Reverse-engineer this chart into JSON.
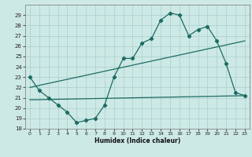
{
  "xlabel": "Humidex (Indice chaleur)",
  "x_ticks": [
    0,
    1,
    2,
    3,
    4,
    5,
    6,
    7,
    8,
    9,
    10,
    11,
    12,
    13,
    14,
    15,
    16,
    17,
    18,
    19,
    20,
    21,
    22,
    23
  ],
  "ylim": [
    18,
    30
  ],
  "xlim": [
    -0.5,
    23.5
  ],
  "y_ticks": [
    18,
    19,
    20,
    21,
    22,
    23,
    24,
    25,
    26,
    27,
    28,
    29
  ],
  "bg_color": "#cde9e6",
  "grid_color": "#a8ceca",
  "line_color": "#1c6b62",
  "line1_x": [
    0,
    1,
    2,
    3,
    4,
    5,
    6,
    7,
    8,
    9,
    10,
    11,
    12,
    13,
    14,
    15,
    16,
    17,
    18,
    19,
    20,
    21,
    22,
    23
  ],
  "line1_y": [
    23.0,
    21.7,
    21.0,
    20.3,
    19.6,
    18.6,
    18.8,
    19.0,
    20.3,
    23.0,
    24.8,
    24.8,
    26.3,
    26.7,
    28.5,
    29.2,
    29.0,
    27.0,
    27.6,
    27.9,
    26.5,
    24.3,
    21.5,
    21.2
  ],
  "line2_x": [
    0,
    23
  ],
  "line2_y": [
    22.0,
    26.5
  ],
  "line3_x": [
    0,
    23
  ],
  "line3_y": [
    20.8,
    21.2
  ]
}
